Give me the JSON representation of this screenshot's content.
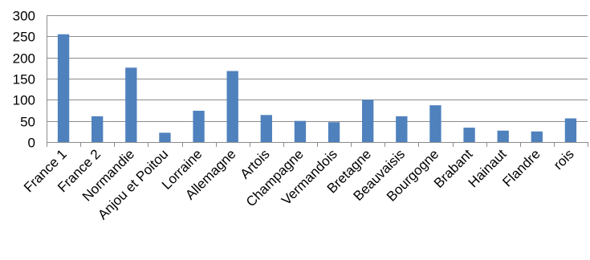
{
  "chart_data": {
    "type": "bar",
    "title": "",
    "xlabel": "",
    "ylabel": "",
    "categories": [
      "France 1",
      "France 2",
      "Normandie",
      "Anjou et Poitou",
      "Lorraine",
      "Allemagne",
      "Artois",
      "Champagne",
      "Vermandois",
      "Bretagne",
      "Beauvaisis",
      "Bourgogne",
      "Brabant",
      "Hainaut",
      "Flandre",
      "rois"
    ],
    "values": [
      255,
      61,
      176,
      22,
      74,
      168,
      64,
      50,
      47,
      100,
      61,
      87,
      34,
      27,
      25,
      56
    ],
    "ylim": [
      0,
      300
    ],
    "yticks": [
      0,
      50,
      100,
      150,
      200,
      250,
      300
    ],
    "grid": true,
    "legend": "none",
    "bar_color": "#4f81bd"
  }
}
